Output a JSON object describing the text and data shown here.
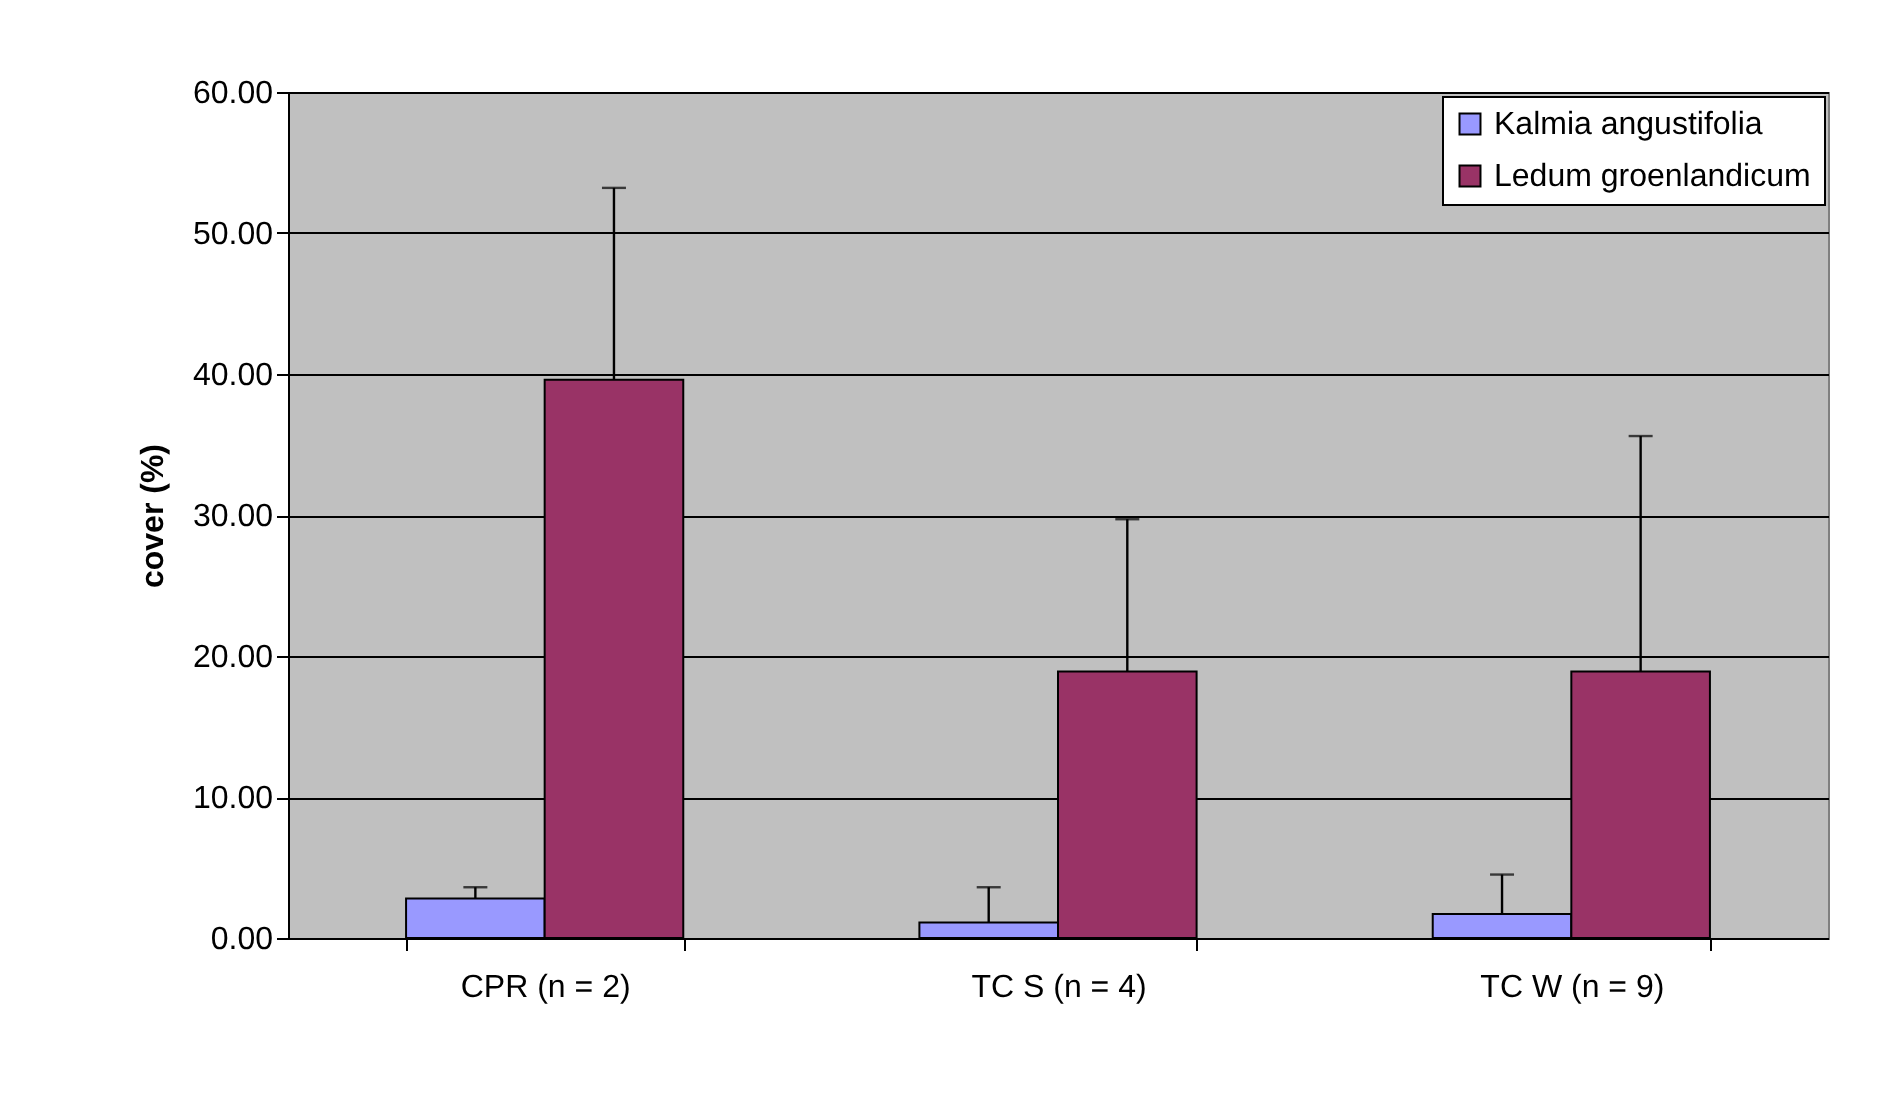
{
  "chart_data": {
    "type": "bar",
    "ylabel": "cover (%)",
    "categories": [
      "CPR (n = 2)",
      "TC S (n = 4)",
      "TC W (n = 9)"
    ],
    "series": [
      {
        "name": "Kalmia angustifolia",
        "color": "#9999ff",
        "values": [
          2.8,
          1.1,
          1.7
        ],
        "errors": [
          [
            2.8,
            3.6
          ],
          [
            1.1,
            3.6
          ],
          [
            1.7,
            4.5
          ]
        ]
      },
      {
        "name": "Ledum groenlandicum",
        "color": "#993366",
        "values": [
          39.6,
          18.9,
          18.9
        ],
        "errors": [
          [
            39.6,
            53.2
          ],
          [
            18.9,
            29.7
          ],
          [
            18.9,
            35.6
          ]
        ]
      }
    ],
    "ylim": [
      0,
      60
    ],
    "yticks": [
      {
        "value": 0,
        "label": "0.00"
      },
      {
        "value": 10,
        "label": "10.00"
      },
      {
        "value": 20,
        "label": "20.00"
      },
      {
        "value": 30,
        "label": "30.00"
      },
      {
        "value": 40,
        "label": "40.00"
      },
      {
        "value": 50,
        "label": "50.00"
      },
      {
        "value": 60,
        "label": "60.00"
      }
    ],
    "grid": "y",
    "legend": "top right"
  }
}
